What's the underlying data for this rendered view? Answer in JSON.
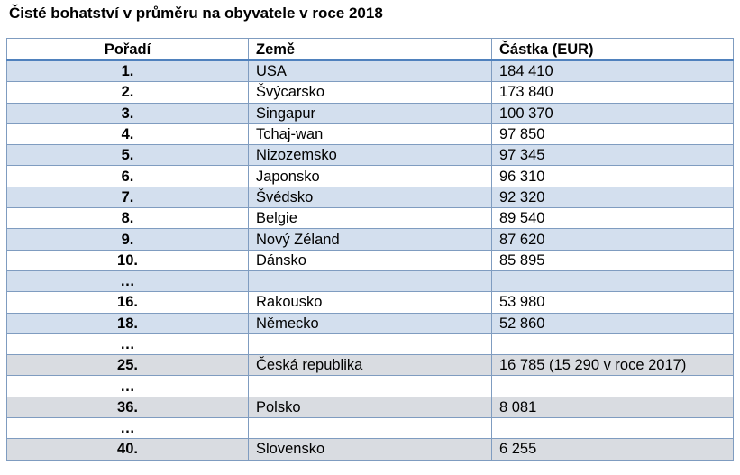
{
  "title": "Čisté bohatství v průměru na obyvatele v roce 2018",
  "table": {
    "headers": {
      "rank": "Pořadí",
      "country": "Země",
      "amount": "Částka (EUR)"
    },
    "rows": [
      {
        "rank": "1.",
        "country": "USA",
        "amount": "184 410",
        "shade": "blue"
      },
      {
        "rank": "2.",
        "country": "Švýcarsko",
        "amount": "173 840",
        "shade": "plain"
      },
      {
        "rank": "3.",
        "country": "Singapur",
        "amount": "100 370",
        "shade": "blue"
      },
      {
        "rank": "4.",
        "country": "Tchaj-wan",
        "amount": "97 850",
        "shade": "plain"
      },
      {
        "rank": "5.",
        "country": "Nizozemsko",
        "amount": "97 345",
        "shade": "blue"
      },
      {
        "rank": "6.",
        "country": "Japonsko",
        "amount": "96 310",
        "shade": "plain"
      },
      {
        "rank": "7.",
        "country": "Švédsko",
        "amount": "92 320",
        "shade": "blue"
      },
      {
        "rank": "8.",
        "country": "Belgie",
        "amount": "89 540",
        "shade": "plain"
      },
      {
        "rank": "9.",
        "country": "Nový Zéland",
        "amount": "87 620",
        "shade": "blue"
      },
      {
        "rank": "10.",
        "country": "Dánsko",
        "amount": "85 895",
        "shade": "plain"
      },
      {
        "rank": "…",
        "country": "",
        "amount": "",
        "shade": "blue"
      },
      {
        "rank": "16.",
        "country": "Rakousko",
        "amount": "53 980",
        "shade": "plain"
      },
      {
        "rank": "18.",
        "country": "Německo",
        "amount": "52 860",
        "shade": "blue"
      },
      {
        "rank": "…",
        "country": "",
        "amount": "",
        "shade": "plain"
      },
      {
        "rank": "25.",
        "country": "Česká republika",
        "amount": "16 785 (15 290 v roce 2017)",
        "shade": "gray"
      },
      {
        "rank": "…",
        "country": "",
        "amount": "",
        "shade": "plain"
      },
      {
        "rank": "36.",
        "country": "Polsko",
        "amount": "8 081",
        "shade": "gray"
      },
      {
        "rank": "…",
        "country": "",
        "amount": "",
        "shade": "plain"
      },
      {
        "rank": "40.",
        "country": "Slovensko",
        "amount": "6 255",
        "shade": "gray"
      }
    ]
  },
  "colors": {
    "row_shade_blue": "#d3dfee",
    "row_shade_gray": "#d9dce1",
    "border": "#7f9cc0",
    "header_rule": "#4f81bd"
  }
}
